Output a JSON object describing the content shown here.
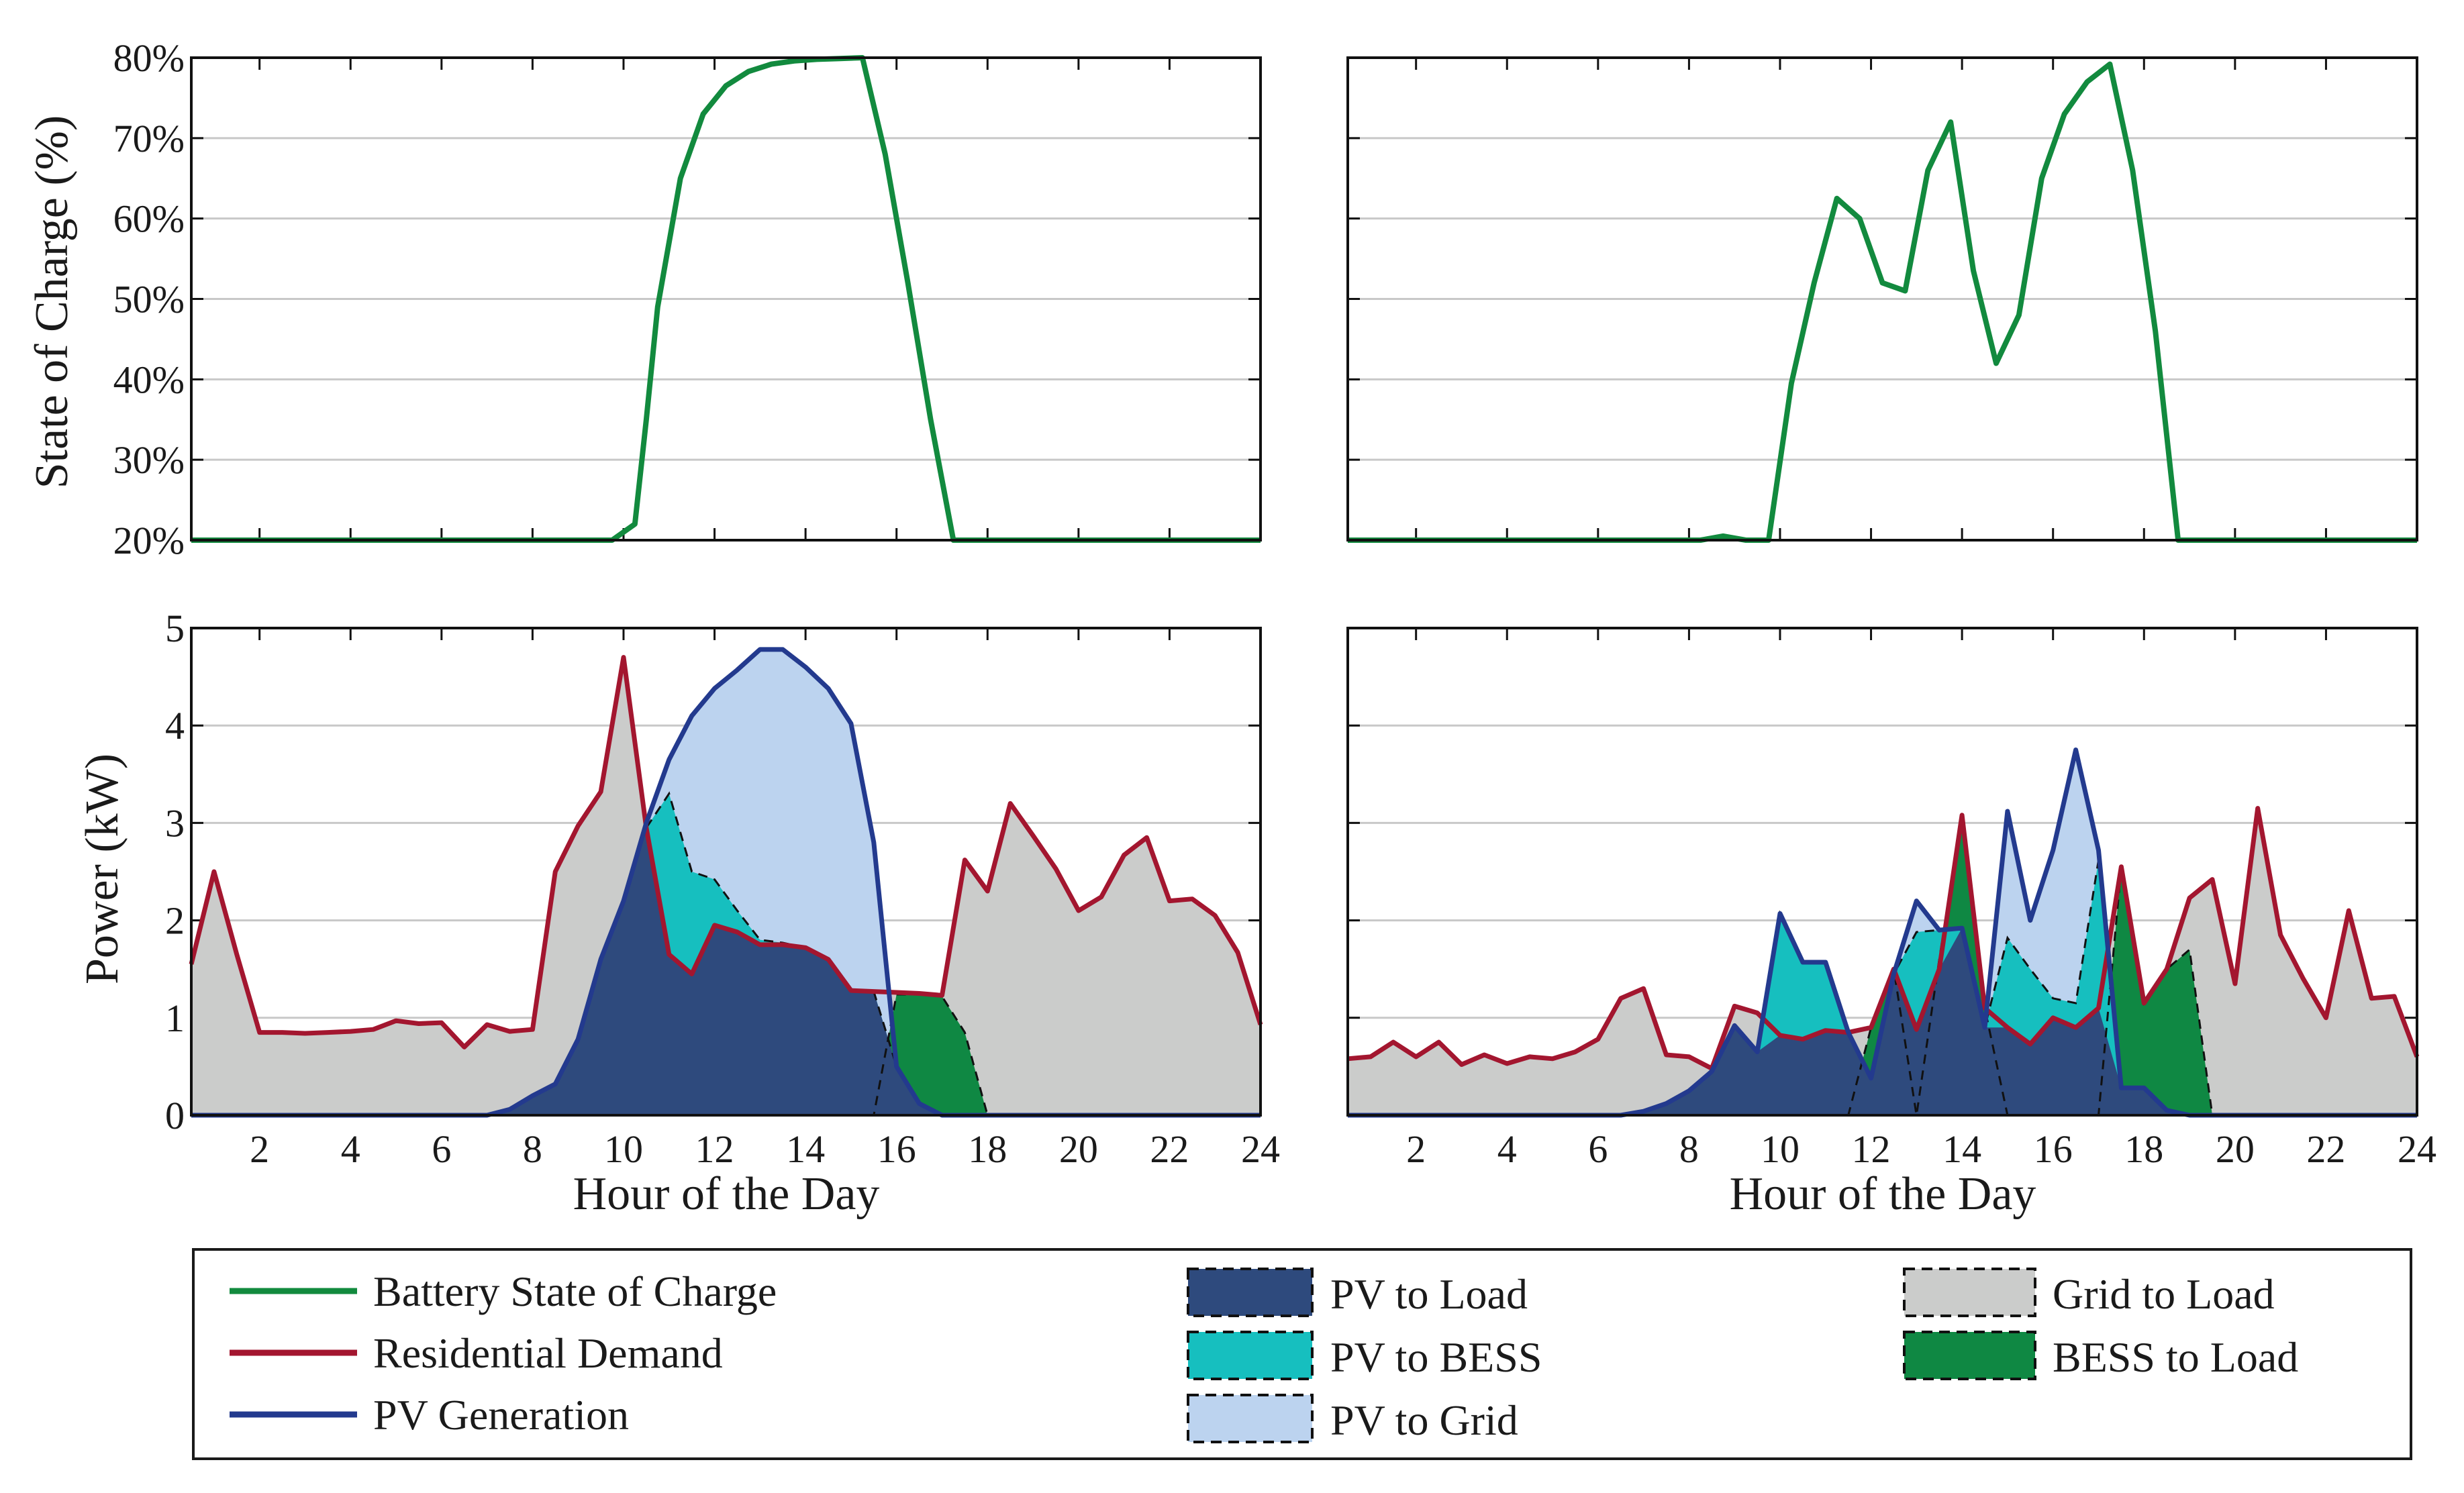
{
  "colors": {
    "soc_line": "#128a3e",
    "demand_line": "#a3162f",
    "pv_line": "#233a8e",
    "pv_to_load": "#2e4a7d",
    "pv_to_bess": "#16bfbf",
    "pv_to_grid": "#bcd3ef",
    "grid_to_load": "#cbcccb",
    "bess_to_load": "#0f8843",
    "gridline": "#c8c8c8"
  },
  "axes": {
    "x_label": "Hour of the Day",
    "x_ticks": [
      2,
      4,
      6,
      8,
      10,
      12,
      14,
      16,
      18,
      20,
      22,
      24
    ],
    "x_tick_labels": [
      "2",
      "4",
      "6",
      "8",
      "10",
      "12",
      "14",
      "16",
      "18",
      "20",
      "22",
      "24"
    ],
    "xlim": [
      0.5,
      24
    ],
    "soc_label": "State of Charge (%)",
    "soc_ticks": [
      20,
      30,
      40,
      50,
      60,
      70,
      80
    ],
    "soc_tick_labels": [
      "20%",
      "30%",
      "40%",
      "50%",
      "60%",
      "70%",
      "80%"
    ],
    "soc_ylim": [
      20,
      80
    ],
    "power_label": "Power (kW)",
    "power_ticks": [
      0,
      1,
      2,
      3,
      4,
      5
    ],
    "power_tick_labels": [
      "0",
      "1",
      "2",
      "3",
      "4",
      "5"
    ],
    "power_ylim": [
      0,
      5
    ]
  },
  "legend": {
    "lines": [
      {
        "key": "soc",
        "label": "Battery State of Charge"
      },
      {
        "key": "demand",
        "label": "Residential Demand"
      },
      {
        "key": "pv",
        "label": "PV Generation"
      }
    ],
    "patches": [
      {
        "key": "pv_to_load",
        "label": "PV to Load"
      },
      {
        "key": "pv_to_bess",
        "label": "PV to BESS"
      },
      {
        "key": "pv_to_grid",
        "label": "PV to Grid"
      },
      {
        "key": "grid_to_load",
        "label": "Grid to Load"
      },
      {
        "key": "bess_to_load",
        "label": "BESS to Load"
      }
    ]
  },
  "chart_data": [
    {
      "type": "line",
      "panel": "top-left",
      "ylabel": "State of Charge (%)",
      "xlabel": "",
      "ylim": [
        20,
        80
      ],
      "x": [
        0.5,
        9.75,
        10.25,
        10.5,
        10.75,
        11.25,
        11.75,
        12.25,
        12.75,
        13.25,
        13.75,
        14.25,
        14.75,
        15.25,
        15.75,
        16.25,
        16.75,
        17.25,
        24
      ],
      "series": [
        {
          "name": "Battery State of Charge",
          "values": [
            20,
            20,
            22,
            35,
            49,
            65,
            73,
            76.5,
            78.3,
            79.2,
            79.6,
            79.8,
            79.9,
            80,
            68,
            52,
            35,
            20,
            20
          ]
        }
      ]
    },
    {
      "type": "line",
      "panel": "top-right",
      "ylabel": "",
      "xlabel": "",
      "ylim": [
        20,
        80
      ],
      "x": [
        0.5,
        8.25,
        8.75,
        9.25,
        9.75,
        10.25,
        10.75,
        11.25,
        11.75,
        12.25,
        12.75,
        13.25,
        13.75,
        14.25,
        14.75,
        15.25,
        15.75,
        16.25,
        16.75,
        17.25,
        17.75,
        18.25,
        18.75,
        24
      ],
      "series": [
        {
          "name": "Battery State of Charge",
          "values": [
            20,
            20,
            20.5,
            20,
            20,
            39.5,
            52,
            62.5,
            60,
            52,
            51,
            66,
            72,
            53.5,
            42,
            48,
            65,
            73,
            77,
            79.2,
            66,
            46,
            20,
            20
          ]
        }
      ]
    },
    {
      "type": "area",
      "panel": "bottom-left",
      "xlabel": "Hour of the Day",
      "ylabel": "Power (kW)",
      "ylim": [
        0,
        5
      ],
      "x": [
        0.5,
        1,
        1.5,
        2,
        2.5,
        3,
        3.5,
        4,
        4.5,
        5,
        5.5,
        6,
        6.5,
        7,
        7.5,
        8,
        8.5,
        9,
        9.5,
        10,
        10.5,
        11,
        11.5,
        12,
        12.5,
        13,
        13.5,
        14,
        14.5,
        15,
        15.5,
        16,
        16.5,
        17,
        17.5,
        18,
        18.5,
        19,
        19.5,
        20,
        20.5,
        21,
        21.5,
        22,
        22.5,
        23,
        23.5,
        24
      ],
      "series": [
        {
          "name": "Residential Demand",
          "values": [
            1.55,
            2.5,
            1.65,
            0.85,
            0.85,
            0.84,
            0.85,
            0.86,
            0.88,
            0.97,
            0.94,
            0.95,
            0.7,
            0.93,
            0.86,
            0.88,
            2.5,
            2.97,
            3.32,
            4.7,
            2.95,
            1.65,
            1.45,
            1.95,
            1.88,
            1.75,
            1.75,
            1.72,
            1.6,
            1.28,
            1.27,
            1.26,
            1.25,
            1.23,
            2.62,
            2.3,
            3.2,
            2.87,
            2.53,
            2.1,
            2.24,
            2.67,
            2.85,
            2.2,
            2.22,
            2.05,
            1.67,
            0.93
          ]
        },
        {
          "name": "PV Generation",
          "values": [
            0,
            0,
            0,
            0,
            0,
            0,
            0,
            0,
            0,
            0,
            0,
            0,
            0,
            0,
            0.06,
            0.2,
            0.32,
            0.78,
            1.6,
            2.2,
            3.0,
            3.65,
            4.1,
            4.38,
            4.57,
            4.78,
            4.78,
            4.6,
            4.38,
            4.02,
            2.8,
            0.5,
            0.12,
            0,
            0,
            0,
            0,
            0,
            0,
            0,
            0,
            0,
            0,
            0,
            0,
            0,
            0,
            0
          ]
        },
        {
          "name": "PV to Load + PV to BESS",
          "values": [
            0,
            0,
            0,
            0,
            0,
            0,
            0,
            0,
            0,
            0,
            0,
            0,
            0,
            0,
            0.06,
            0.2,
            0.32,
            0.78,
            1.6,
            2.2,
            2.95,
            3.3,
            2.5,
            2.42,
            2.1,
            1.8,
            1.77,
            1.72,
            1.6,
            1.28,
            1.27,
            0.5,
            0.12,
            0,
            0,
            0,
            0,
            0,
            0,
            0,
            0,
            0,
            0,
            0,
            0,
            0,
            0,
            0
          ]
        },
        {
          "name": "PV to Load",
          "values": [
            0,
            0,
            0,
            0,
            0,
            0,
            0,
            0,
            0,
            0,
            0,
            0,
            0,
            0,
            0.06,
            0.2,
            0.32,
            0.78,
            1.6,
            2.2,
            2.95,
            1.65,
            1.45,
            1.95,
            1.88,
            1.75,
            1.75,
            1.72,
            1.6,
            1.28,
            1.27,
            0.5,
            0.12,
            0,
            0,
            0,
            0,
            0,
            0,
            0,
            0,
            0,
            0,
            0,
            0,
            0,
            0,
            0
          ]
        },
        {
          "name": "BESS to Load (top)",
          "values": [
            0,
            0,
            0,
            0,
            0,
            0,
            0,
            0,
            0,
            0,
            0,
            0,
            0,
            0,
            0,
            0,
            0,
            0,
            0,
            0,
            0,
            0,
            0,
            0,
            0,
            0,
            0,
            0,
            0,
            0,
            0,
            1.24,
            1.24,
            1.22,
            0.85,
            0,
            0,
            0,
            0,
            0,
            0,
            0,
            0,
            0,
            0,
            0,
            0,
            0
          ]
        }
      ]
    },
    {
      "type": "area",
      "panel": "bottom-right",
      "xlabel": "Hour of the Day",
      "ylabel": "",
      "ylim": [
        0,
        5
      ],
      "x": [
        0.5,
        1,
        1.5,
        2,
        2.5,
        3,
        3.5,
        4,
        4.5,
        5,
        5.5,
        6,
        6.5,
        7,
        7.5,
        8,
        8.5,
        9,
        9.5,
        10,
        10.5,
        11,
        11.5,
        12,
        12.5,
        13,
        13.5,
        14,
        14.5,
        15,
        15.5,
        16,
        16.5,
        17,
        17.5,
        18,
        18.5,
        19,
        19.5,
        20,
        20.5,
        21,
        21.5,
        22,
        22.5,
        23,
        23.5,
        24
      ],
      "series": [
        {
          "name": "Residential Demand",
          "values": [
            0.58,
            0.6,
            0.75,
            0.6,
            0.75,
            0.52,
            0.62,
            0.53,
            0.6,
            0.58,
            0.65,
            0.78,
            1.2,
            1.3,
            0.62,
            0.6,
            0.48,
            1.12,
            1.05,
            0.82,
            0.78,
            0.87,
            0.85,
            0.9,
            1.5,
            0.88,
            1.5,
            3.08,
            1.1,
            0.9,
            0.73,
            1.0,
            0.9,
            1.1,
            2.55,
            1.15,
            1.5,
            2.23,
            2.42,
            1.35,
            3.15,
            1.85,
            1.4,
            1.0,
            2.1,
            1.2,
            1.22,
            0.6
          ]
        },
        {
          "name": "PV Generation",
          "values": [
            0,
            0,
            0,
            0,
            0,
            0,
            0,
            0,
            0,
            0,
            0,
            0,
            0,
            0.04,
            0.12,
            0.25,
            0.45,
            0.92,
            0.65,
            2.07,
            1.57,
            1.57,
            0.85,
            0.38,
            1.45,
            2.2,
            1.9,
            1.92,
            0.9,
            3.12,
            2.0,
            2.72,
            3.75,
            2.72,
            0.28,
            0.28,
            0.05,
            0,
            0,
            0,
            0,
            0,
            0,
            0,
            0,
            0,
            0,
            0
          ]
        },
        {
          "name": "PV to Load + PV to BESS",
          "values": [
            0,
            0,
            0,
            0,
            0,
            0,
            0,
            0,
            0,
            0,
            0,
            0,
            0,
            0.04,
            0.12,
            0.25,
            0.45,
            0.92,
            0.65,
            2.07,
            1.57,
            1.57,
            0.85,
            0.38,
            1.45,
            1.88,
            1.9,
            1.92,
            0.9,
            1.82,
            1.5,
            1.2,
            1.15,
            2.62,
            0.28,
            0.28,
            0.05,
            0,
            0,
            0,
            0,
            0,
            0,
            0,
            0,
            0,
            0,
            0
          ]
        },
        {
          "name": "PV to Load",
          "values": [
            0,
            0,
            0,
            0,
            0,
            0,
            0,
            0,
            0,
            0,
            0,
            0,
            0,
            0.04,
            0.12,
            0.25,
            0.45,
            0.92,
            0.65,
            0.82,
            0.78,
            0.87,
            0.85,
            0.38,
            1.45,
            0.88,
            1.5,
            1.92,
            0.9,
            0.9,
            0.73,
            1.0,
            0.9,
            1.1,
            0.28,
            0.28,
            0.05,
            0,
            0,
            0,
            0,
            0,
            0,
            0,
            0,
            0,
            0,
            0
          ]
        },
        {
          "name": "BESS to Load (top)",
          "values": [
            0,
            0,
            0,
            0,
            0,
            0,
            0,
            0,
            0,
            0,
            0,
            0,
            0,
            0,
            0,
            0,
            0,
            0,
            0,
            0,
            0,
            0,
            0,
            0.9,
            1.5,
            0,
            1.6,
            3.08,
            1.1,
            0,
            0,
            0,
            0,
            0,
            2.55,
            1.15,
            1.5,
            1.7,
            0,
            0,
            0,
            0,
            0,
            0,
            0,
            0,
            0,
            0
          ]
        }
      ]
    }
  ]
}
